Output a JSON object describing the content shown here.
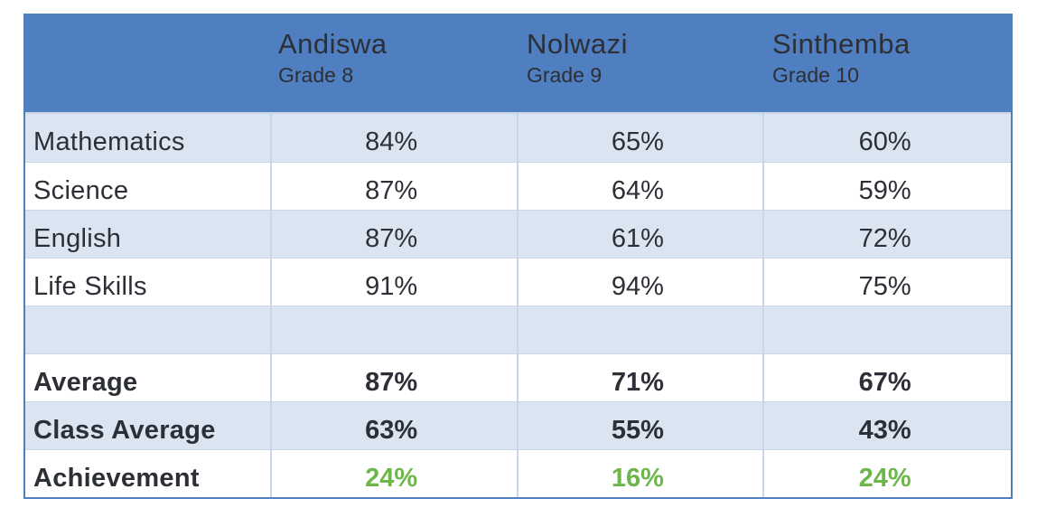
{
  "chart_data": {
    "type": "table",
    "columns": [
      {
        "name": "Andiswa",
        "grade": "Grade 8"
      },
      {
        "name": "Nolwazi",
        "grade": "Grade 9"
      },
      {
        "name": "Sinthemba",
        "grade": "Grade 10"
      }
    ],
    "rows": [
      {
        "label": "Mathematics",
        "values": [
          "84%",
          "65%",
          "60%"
        ]
      },
      {
        "label": "Science",
        "values": [
          "87%",
          "64%",
          "59%"
        ]
      },
      {
        "label": "English",
        "values": [
          "87%",
          "61%",
          "72%"
        ]
      },
      {
        "label": "Life Skills",
        "values": [
          "91%",
          "94%",
          "75%"
        ]
      },
      {
        "label": "",
        "values": [
          "",
          "",
          ""
        ]
      },
      {
        "label": "Average",
        "values": [
          "87%",
          "71%",
          "67%"
        ]
      },
      {
        "label": "Class Average",
        "values": [
          "63%",
          "55%",
          "43%"
        ]
      },
      {
        "label": "Achievement",
        "values": [
          "24%",
          "16%",
          "24%"
        ]
      }
    ],
    "colors": {
      "header": "#4f7fc0",
      "shaded_row": "#dbe4f1",
      "achievement_text": "#6db64a"
    }
  }
}
